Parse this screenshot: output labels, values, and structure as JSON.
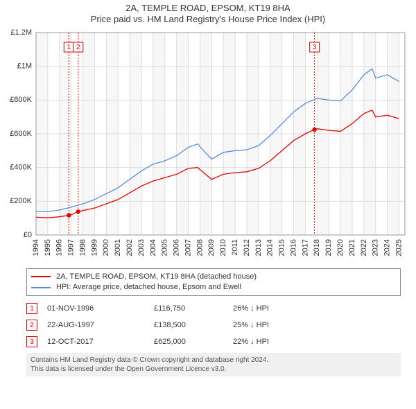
{
  "title": "2A, TEMPLE ROAD, EPSOM, KT19 8HA",
  "subtitle": "Price paid vs. HM Land Registry's House Price Index (HPI)",
  "chart": {
    "type": "line",
    "background_color": "#ffffff",
    "plot_bg_stripe_a": "#ffffff",
    "plot_bg_stripe_b": "#f7f7f7",
    "grid_color": "#dddddd",
    "x_range": [
      1994,
      2025.5
    ],
    "x_ticks": [
      1994,
      1995,
      1996,
      1997,
      1998,
      1999,
      2000,
      2001,
      2002,
      2003,
      2004,
      2005,
      2006,
      2007,
      2008,
      2009,
      2010,
      2011,
      2012,
      2013,
      2014,
      2015,
      2016,
      2017,
      2018,
      2019,
      2020,
      2021,
      2022,
      2023,
      2024,
      2025
    ],
    "y_range": [
      0,
      1200000
    ],
    "y_ticks": [
      {
        "v": 0,
        "label": "£0"
      },
      {
        "v": 200000,
        "label": "£200K"
      },
      {
        "v": 400000,
        "label": "£400K"
      },
      {
        "v": 600000,
        "label": "£600K"
      },
      {
        "v": 800000,
        "label": "£800K"
      },
      {
        "v": 1000000,
        "label": "£1M"
      },
      {
        "v": 1200000,
        "label": "£1.2M"
      }
    ],
    "series": [
      {
        "name": "price_paid",
        "color": "#e60000",
        "width": 1.3,
        "points": [
          [
            1994,
            105000
          ],
          [
            1995,
            102000
          ],
          [
            1996,
            108000
          ],
          [
            1996.8,
            116750
          ],
          [
            1997,
            120000
          ],
          [
            1997.6,
            138500
          ],
          [
            1998,
            145000
          ],
          [
            1999,
            160000
          ],
          [
            2000,
            185000
          ],
          [
            2001,
            210000
          ],
          [
            2002,
            250000
          ],
          [
            2003,
            290000
          ],
          [
            2004,
            320000
          ],
          [
            2005,
            340000
          ],
          [
            2006,
            360000
          ],
          [
            2007,
            395000
          ],
          [
            2007.8,
            400000
          ],
          [
            2008.3,
            370000
          ],
          [
            2009,
            330000
          ],
          [
            2010,
            360000
          ],
          [
            2011,
            370000
          ],
          [
            2012,
            375000
          ],
          [
            2013,
            395000
          ],
          [
            2014,
            440000
          ],
          [
            2015,
            500000
          ],
          [
            2016,
            560000
          ],
          [
            2017,
            600000
          ],
          [
            2017.78,
            625000
          ],
          [
            2018,
            630000
          ],
          [
            2019,
            620000
          ],
          [
            2020,
            615000
          ],
          [
            2021,
            660000
          ],
          [
            2022,
            720000
          ],
          [
            2022.7,
            740000
          ],
          [
            2023,
            700000
          ],
          [
            2024,
            710000
          ],
          [
            2025,
            690000
          ]
        ]
      },
      {
        "name": "hpi",
        "color": "#5b8bd6",
        "width": 1.3,
        "points": [
          [
            1994,
            140000
          ],
          [
            1995,
            138000
          ],
          [
            1996,
            148000
          ],
          [
            1997,
            165000
          ],
          [
            1998,
            185000
          ],
          [
            1999,
            210000
          ],
          [
            2000,
            245000
          ],
          [
            2001,
            280000
          ],
          [
            2002,
            330000
          ],
          [
            2003,
            380000
          ],
          [
            2004,
            420000
          ],
          [
            2005,
            440000
          ],
          [
            2006,
            470000
          ],
          [
            2007,
            520000
          ],
          [
            2007.8,
            540000
          ],
          [
            2008.3,
            500000
          ],
          [
            2009,
            450000
          ],
          [
            2010,
            490000
          ],
          [
            2011,
            500000
          ],
          [
            2012,
            505000
          ],
          [
            2013,
            530000
          ],
          [
            2014,
            590000
          ],
          [
            2015,
            660000
          ],
          [
            2016,
            730000
          ],
          [
            2017,
            780000
          ],
          [
            2018,
            810000
          ],
          [
            2019,
            800000
          ],
          [
            2020,
            795000
          ],
          [
            2021,
            860000
          ],
          [
            2022,
            950000
          ],
          [
            2022.7,
            985000
          ],
          [
            2023,
            930000
          ],
          [
            2024,
            950000
          ],
          [
            2025,
            910000
          ]
        ]
      }
    ],
    "event_markers": [
      {
        "n": "1",
        "x": 1996.8,
        "y": 116750
      },
      {
        "n": "2",
        "x": 1997.6,
        "y": 138500
      },
      {
        "n": "3",
        "x": 2017.78,
        "y": 625000
      }
    ],
    "event_line_color": "#e60000",
    "event_point_color": "#e60000",
    "axis_fontsize": 11,
    "marker_box_size": 14
  },
  "legend": {
    "items": [
      {
        "color": "#e60000",
        "label": "2A, TEMPLE ROAD, EPSOM, KT19 8HA (detached house)"
      },
      {
        "color": "#5b8bd6",
        "label": "HPI: Average price, detached house, Epsom and Ewell"
      }
    ]
  },
  "events": [
    {
      "n": "1",
      "date": "01-NOV-1996",
      "price": "£116,750",
      "diff": "26% ↓ HPI"
    },
    {
      "n": "2",
      "date": "22-AUG-1997",
      "price": "£138,500",
      "diff": "25% ↓ HPI"
    },
    {
      "n": "3",
      "date": "12-OCT-2017",
      "price": "£625,000",
      "diff": "22% ↓ HPI"
    }
  ],
  "footer_line1": "Contains HM Land Registry data © Crown copyright and database right 2024.",
  "footer_line2": "This data is licensed under the Open Government Licence v3.0."
}
